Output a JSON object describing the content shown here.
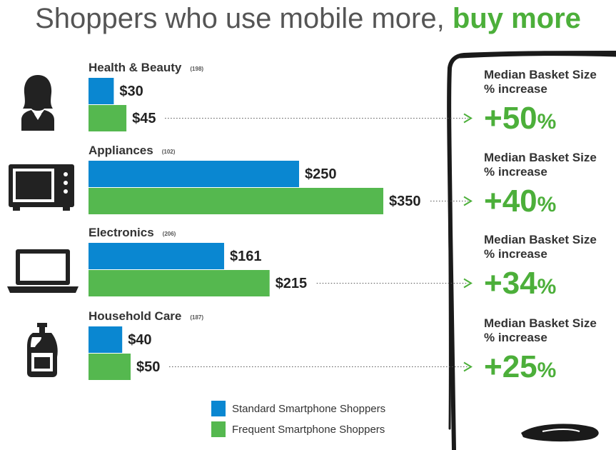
{
  "title": {
    "main": "Shoppers who use mobile more, ",
    "accent": "buy more"
  },
  "colors": {
    "standard": "#0a87d1",
    "frequent": "#55b84f",
    "accent": "#4caf3a"
  },
  "chart_data": {
    "type": "bar",
    "orientation": "horizontal",
    "categories": [
      "Health & Beauty",
      "Appliances",
      "Electronics",
      "Household Care"
    ],
    "sample_sizes": [
      "(198)",
      "(102)",
      "(206)",
      "(187)"
    ],
    "icons": [
      "woman-icon",
      "microwave-icon",
      "laptop-icon",
      "detergent-bottle-icon"
    ],
    "series": [
      {
        "name": "Standard Smartphone Shoppers",
        "values": [
          30,
          250,
          161,
          40
        ],
        "labels": [
          "$30",
          "$250",
          "$161",
          "$40"
        ]
      },
      {
        "name": "Frequent Smartphone Shoppers",
        "values": [
          45,
          350,
          215,
          50
        ],
        "labels": [
          "$45",
          "$350",
          "$215",
          "$50"
        ]
      }
    ],
    "increase_heading_line1": "Median Basket Size",
    "increase_heading_line2": "% increase",
    "increase_values": [
      "+50",
      "+40",
      "+34",
      "+25"
    ],
    "increase_unit": "%",
    "legend_position": "bottom"
  }
}
